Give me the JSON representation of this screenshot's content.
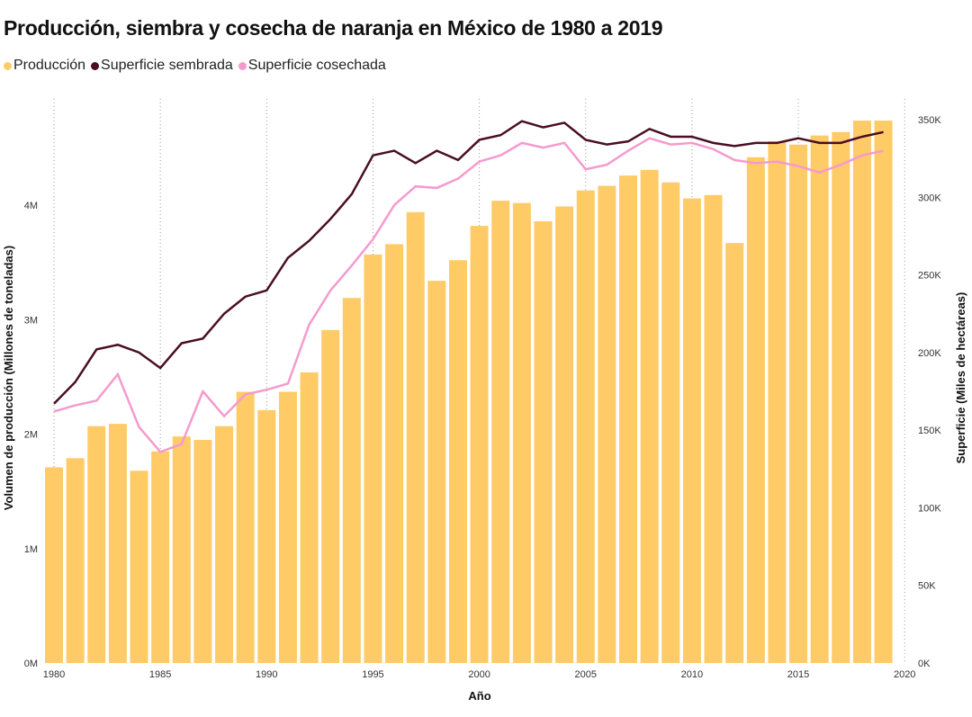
{
  "chart_data": {
    "type": "bar+line",
    "title": "Producción, siembra y cosecha de naranja en México de 1980 a 2019",
    "xlabel": "Año",
    "ylabel_left": "Volumen de producción (Millones de toneladas)",
    "ylabel_right": "Superficie (Miles de hectáreas)",
    "x": [
      1980,
      1981,
      1982,
      1983,
      1984,
      1985,
      1986,
      1987,
      1988,
      1989,
      1990,
      1991,
      1992,
      1993,
      1994,
      1995,
      1996,
      1997,
      1998,
      1999,
      2000,
      2001,
      2002,
      2003,
      2004,
      2005,
      2006,
      2007,
      2008,
      2009,
      2010,
      2011,
      2012,
      2013,
      2014,
      2015,
      2016,
      2017,
      2018,
      2019
    ],
    "x_ticks": [
      "1980",
      "1985",
      "1990",
      "1995",
      "2000",
      "2005",
      "2010",
      "2015",
      "2020"
    ],
    "y_left_ticks": [
      "0M",
      "1M",
      "2M",
      "3M",
      "4M"
    ],
    "y_right_ticks": [
      "0K",
      "50K",
      "100K",
      "150K",
      "200K",
      "250K",
      "300K",
      "350K"
    ],
    "ylim_left": [
      0,
      4.75
    ],
    "ylim_right": [
      0,
      350
    ],
    "grid": "vertical dotted at x ticks",
    "legend_position": "top-left",
    "series": [
      {
        "name": "Producción",
        "type": "bar",
        "axis": "left",
        "color": "#FECB67",
        "values": [
          1.71,
          1.79,
          2.07,
          2.09,
          1.68,
          1.85,
          1.98,
          1.95,
          2.07,
          2.37,
          2.21,
          2.37,
          2.54,
          2.91,
          3.19,
          3.57,
          3.66,
          3.94,
          3.34,
          3.52,
          3.82,
          4.04,
          4.02,
          3.86,
          3.99,
          4.13,
          4.17,
          4.26,
          4.31,
          4.2,
          4.06,
          4.09,
          3.67,
          4.42,
          4.56,
          4.53,
          4.61,
          4.64,
          4.74,
          4.74
        ]
      },
      {
        "name": "Superficie sembrada",
        "type": "line",
        "axis": "right",
        "color": "#4A0E24",
        "values": [
          167,
          181,
          202,
          205,
          200,
          190,
          206,
          209,
          225,
          236,
          240,
          261,
          272,
          286,
          302,
          327,
          330,
          322,
          330,
          324,
          337,
          340,
          349,
          345,
          348,
          337,
          334,
          336,
          344,
          339,
          339,
          335,
          333,
          335,
          335,
          338,
          335,
          335,
          339,
          342
        ]
      },
      {
        "name": "Superficie cosechada",
        "type": "line",
        "axis": "right",
        "color": "#F59ACF",
        "values": [
          162,
          166,
          169,
          186,
          152,
          136,
          141,
          175,
          159,
          173,
          176,
          180,
          218,
          240,
          256,
          273,
          295,
          307,
          306,
          312,
          323,
          327,
          335,
          332,
          335,
          318,
          321,
          330,
          338,
          334,
          335,
          331,
          324,
          322,
          323,
          320,
          316,
          321,
          327,
          330
        ]
      }
    ]
  }
}
